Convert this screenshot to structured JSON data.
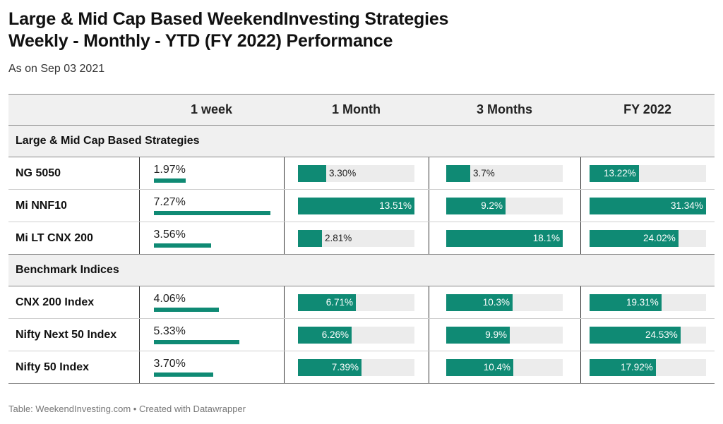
{
  "title_line1": "Large & Mid Cap Based WeekendInvesting Strategies",
  "title_line2": "Weekly - Monthly - YTD (FY 2022) Performance",
  "subtitle": "As on Sep 03 2021",
  "footer": "Table: WeekendInvesting.com • Created with Datawrapper",
  "accent_color": "#0f8a74",
  "chart_data": {
    "type": "table",
    "columns": [
      "",
      "1 week",
      "1 Month",
      "3 Months",
      "FY 2022"
    ],
    "column_max": {
      "1 week": 7.27,
      "1 Month": 13.51,
      "3 Months": 18.1,
      "FY 2022": 31.34
    },
    "groups": [
      {
        "label": "Large & Mid Cap Based Strategies",
        "rows": [
          {
            "name": "NG 5050",
            "week": 1.97,
            "week_label": "1.97%",
            "month": 3.3,
            "month_label": "3.30%",
            "three_months": 3.7,
            "three_months_label": "3.7%",
            "fy2022": 13.22,
            "fy2022_label": "13.22%"
          },
          {
            "name": "Mi NNF10",
            "week": 7.27,
            "week_label": "7.27%",
            "month": 13.51,
            "month_label": "13.51%",
            "three_months": 9.2,
            "three_months_label": "9.2%",
            "fy2022": 31.34,
            "fy2022_label": "31.34%"
          },
          {
            "name": "Mi LT CNX 200",
            "week": 3.56,
            "week_label": "3.56%",
            "month": 2.81,
            "month_label": "2.81%",
            "three_months": 18.1,
            "three_months_label": "18.1%",
            "fy2022": 24.02,
            "fy2022_label": "24.02%"
          }
        ]
      },
      {
        "label": "Benchmark Indices",
        "rows": [
          {
            "name": "CNX 200 Index",
            "week": 4.06,
            "week_label": "4.06%",
            "month": 6.71,
            "month_label": "6.71%",
            "three_months": 10.3,
            "three_months_label": "10.3%",
            "fy2022": 19.31,
            "fy2022_label": "19.31%"
          },
          {
            "name": "Nifty Next 50 Index",
            "week": 5.33,
            "week_label": "5.33%",
            "month": 6.26,
            "month_label": "6.26%",
            "three_months": 9.9,
            "three_months_label": "9.9%",
            "fy2022": 24.53,
            "fy2022_label": "24.53%"
          },
          {
            "name": "Nifty 50 Index",
            "week": 3.7,
            "week_label": "3.70%",
            "month": 7.39,
            "month_label": "7.39%",
            "three_months": 10.4,
            "three_months_label": "10.4%",
            "fy2022": 17.92,
            "fy2022_label": "17.92%"
          }
        ]
      }
    ]
  }
}
